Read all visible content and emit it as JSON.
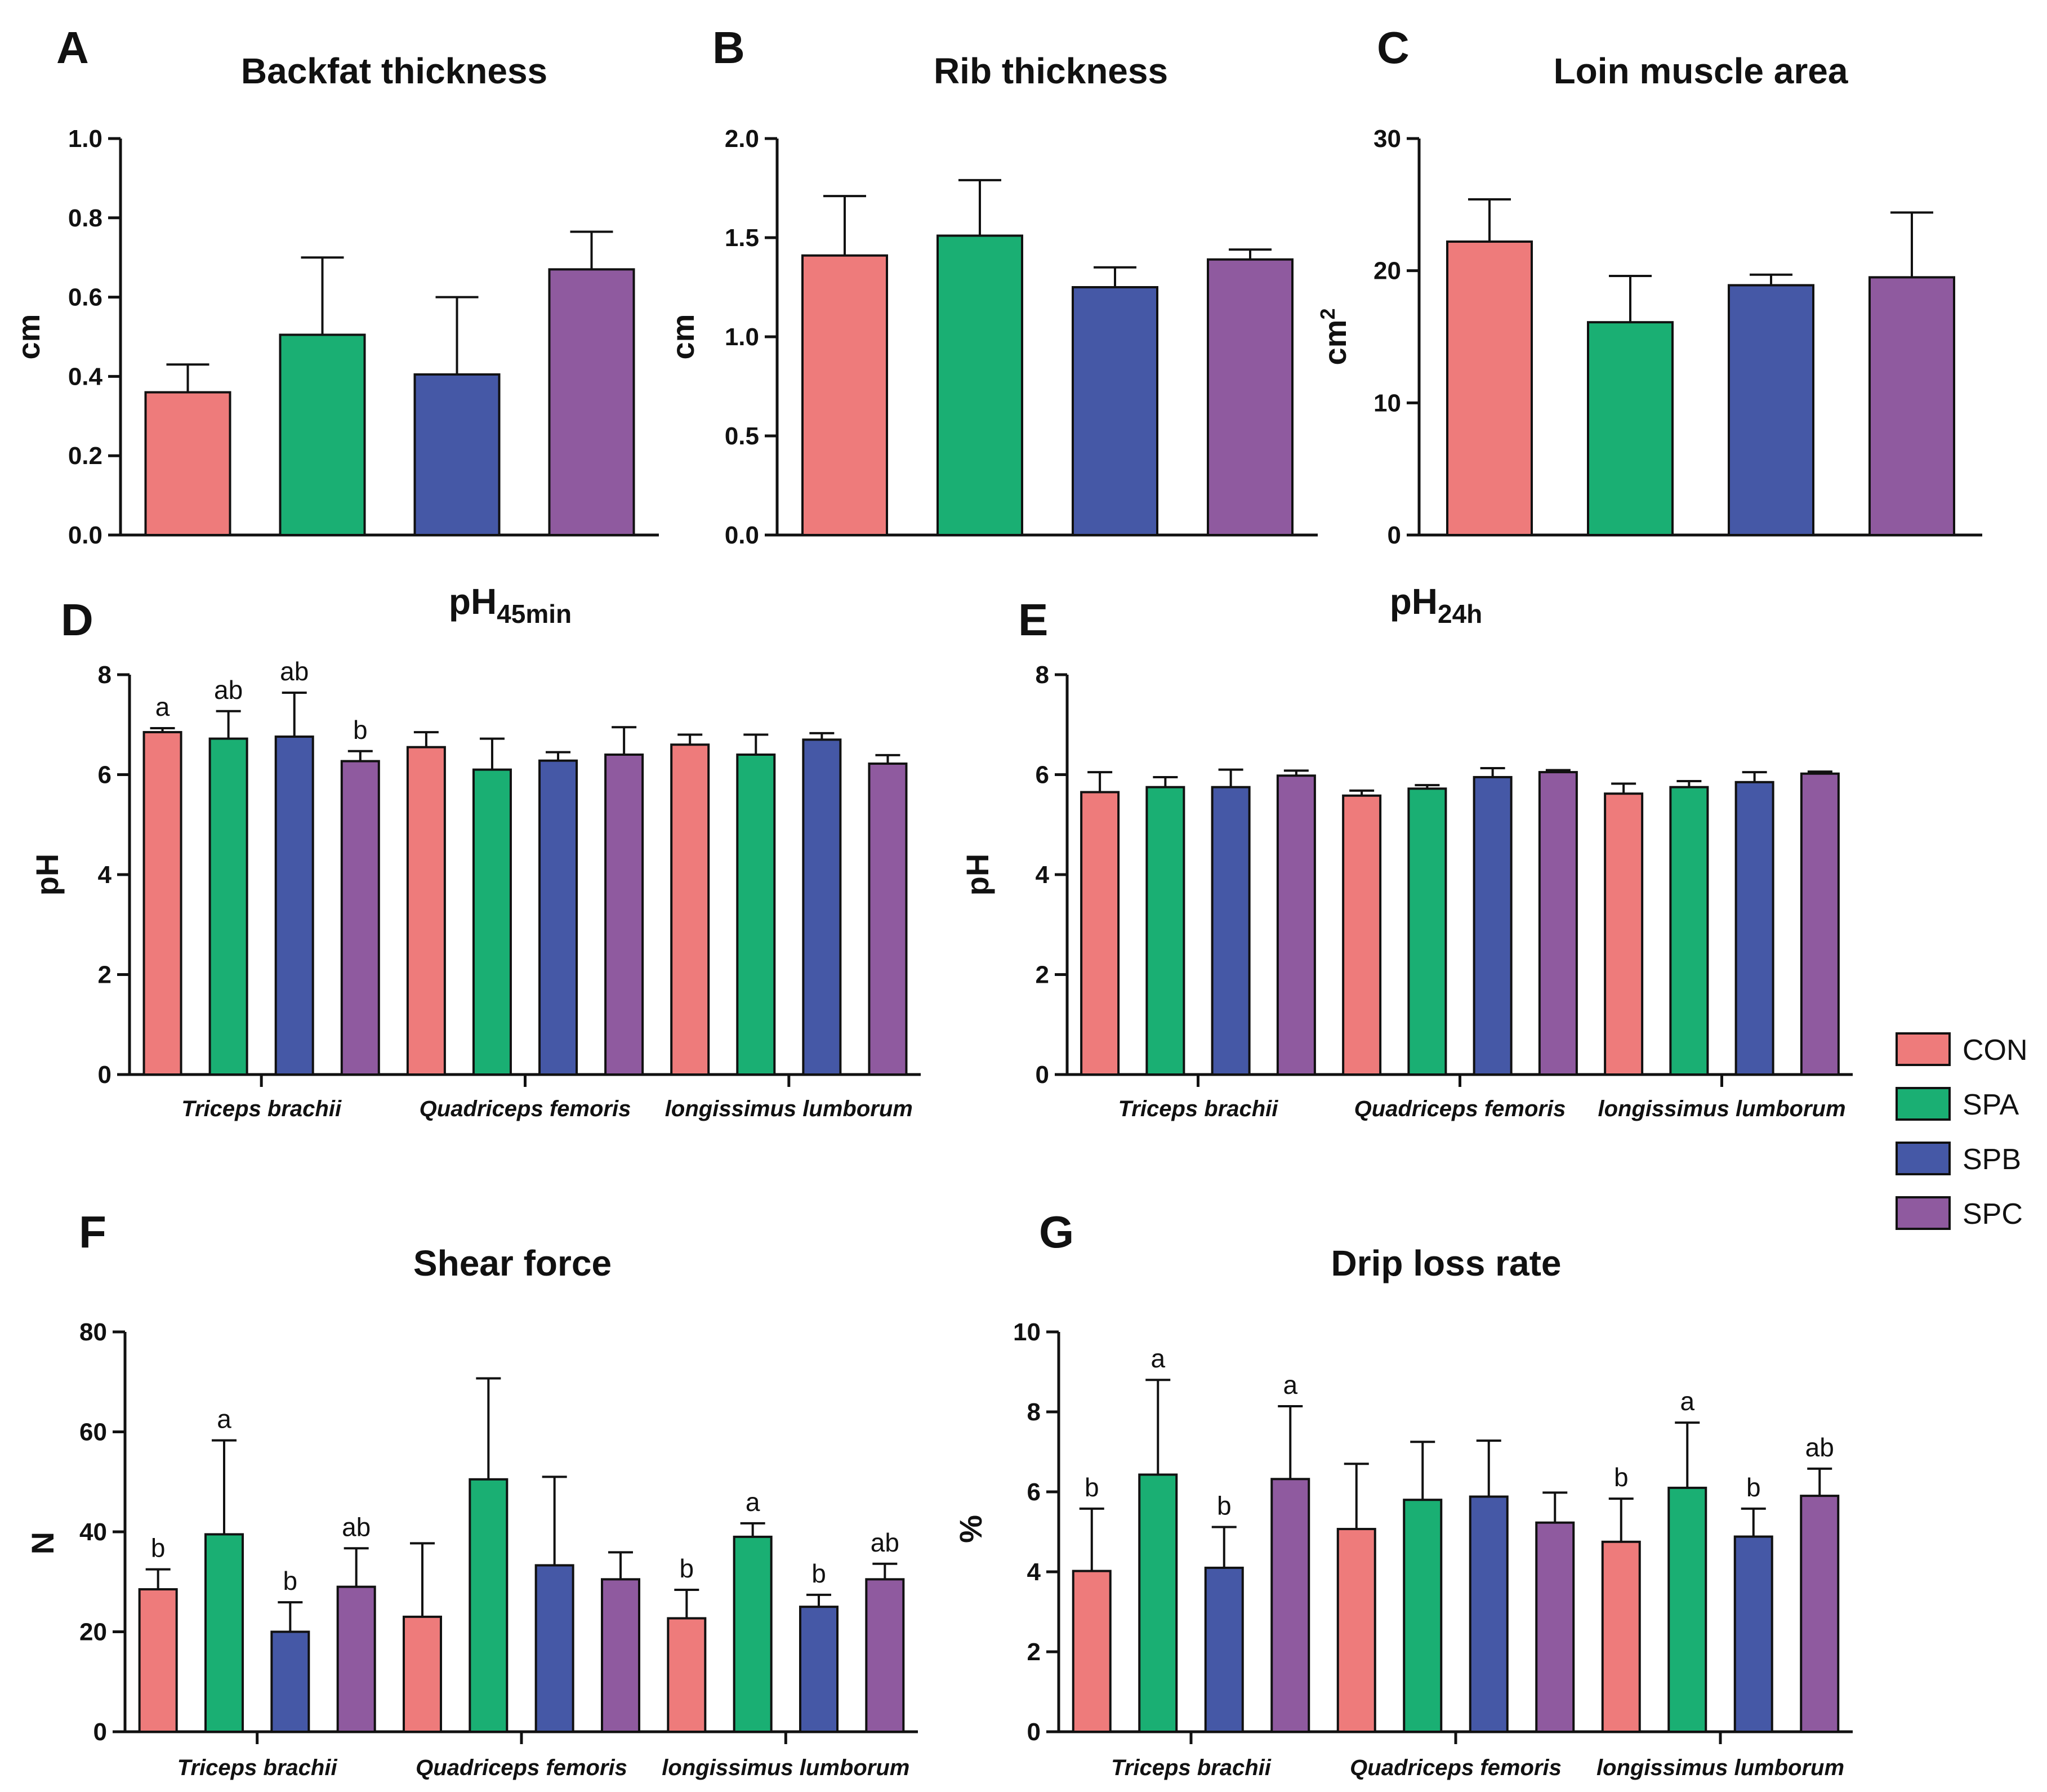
{
  "legend": [
    {
      "name": "CON",
      "color": "#ee7b7b"
    },
    {
      "name": "SPA",
      "color": "#1aaf73"
    },
    {
      "name": "SPB",
      "color": "#4558a6"
    },
    {
      "name": "SPC",
      "color": "#8f5a9f"
    }
  ],
  "chart_data": [
    {
      "panel": "A",
      "type": "bar",
      "title": "Backfat thickness",
      "ylabel": "cm",
      "ylim": [
        0,
        1.0
      ],
      "ticks": [
        "0.0",
        "0.2",
        "0.4",
        "0.6",
        "0.8",
        "1.0"
      ],
      "series": [
        {
          "name": "CON",
          "values": [
            0.36
          ],
          "errors": [
            0.07
          ]
        },
        {
          "name": "SPA",
          "values": [
            0.505
          ],
          "errors": [
            0.195
          ]
        },
        {
          "name": "SPB",
          "values": [
            0.405
          ],
          "errors": [
            0.195
          ]
        },
        {
          "name": "SPC",
          "values": [
            0.67
          ],
          "errors": [
            0.095
          ]
        }
      ]
    },
    {
      "panel": "B",
      "type": "bar",
      "title": "Rib thickness",
      "ylabel": "cm",
      "ylim": [
        0,
        2.0
      ],
      "ticks": [
        "0.0",
        "0.5",
        "1.0",
        "1.5",
        "2.0"
      ],
      "series": [
        {
          "name": "CON",
          "values": [
            1.41
          ],
          "errors": [
            0.3
          ]
        },
        {
          "name": "SPA",
          "values": [
            1.51
          ],
          "errors": [
            0.28
          ]
        },
        {
          "name": "SPB",
          "values": [
            1.25
          ],
          "errors": [
            0.1
          ]
        },
        {
          "name": "SPC",
          "values": [
            1.39
          ],
          "errors": [
            0.05
          ]
        }
      ]
    },
    {
      "panel": "C",
      "type": "bar",
      "title": "Loin muscle area",
      "ylabel": "cm",
      "ylabel_superscript": "2",
      "ylim": [
        0,
        30
      ],
      "ticks": [
        "0",
        "10",
        "20",
        "30"
      ],
      "series": [
        {
          "name": "CON",
          "values": [
            22.2
          ],
          "errors": [
            3.2
          ]
        },
        {
          "name": "SPA",
          "values": [
            16.1
          ],
          "errors": [
            3.5
          ]
        },
        {
          "name": "SPB",
          "values": [
            18.9
          ],
          "errors": [
            0.8
          ]
        },
        {
          "name": "SPC",
          "values": [
            19.5
          ],
          "errors": [
            4.9
          ]
        }
      ]
    },
    {
      "panel": "D",
      "type": "bar",
      "title": "pH",
      "title_subscript": "45min",
      "ylabel": "pH",
      "ylim": [
        0,
        8
      ],
      "ticks": [
        "0",
        "2",
        "4",
        "6",
        "8"
      ],
      "categories": [
        "Triceps brachii",
        "Quadriceps femoris",
        "longissimus lumborum"
      ],
      "series": [
        {
          "name": "CON",
          "values": [
            6.85,
            6.55,
            6.6
          ],
          "errors": [
            0.08,
            0.3,
            0.2
          ],
          "labels": [
            "a",
            "",
            ""
          ]
        },
        {
          "name": "SPA",
          "values": [
            6.72,
            6.1,
            6.4
          ],
          "errors": [
            0.55,
            0.62,
            0.4
          ],
          "labels": [
            "ab",
            "",
            ""
          ]
        },
        {
          "name": "SPB",
          "values": [
            6.76,
            6.28,
            6.7
          ],
          "errors": [
            0.88,
            0.17,
            0.13
          ],
          "labels": [
            "ab",
            "",
            ""
          ]
        },
        {
          "name": "SPC",
          "values": [
            6.27,
            6.4,
            6.22
          ],
          "errors": [
            0.2,
            0.55,
            0.17
          ],
          "labels": [
            "b",
            "",
            ""
          ]
        }
      ]
    },
    {
      "panel": "E",
      "type": "bar",
      "title": "pH",
      "title_subscript": "24h",
      "ylabel": "pH",
      "ylim": [
        0,
        8
      ],
      "ticks": [
        "0",
        "2",
        "4",
        "6",
        "8"
      ],
      "categories": [
        "Triceps brachii",
        "Quadriceps femoris",
        "longissimus lumborum"
      ],
      "series": [
        {
          "name": "CON",
          "values": [
            5.65,
            5.58,
            5.62
          ],
          "errors": [
            0.4,
            0.1,
            0.2
          ]
        },
        {
          "name": "SPA",
          "values": [
            5.75,
            5.72,
            5.75
          ],
          "errors": [
            0.2,
            0.07,
            0.12
          ]
        },
        {
          "name": "SPB",
          "values": [
            5.75,
            5.95,
            5.85
          ],
          "errors": [
            0.35,
            0.18,
            0.2
          ]
        },
        {
          "name": "SPC",
          "values": [
            5.98,
            6.05,
            6.02
          ],
          "errors": [
            0.1,
            0.04,
            0.04
          ]
        }
      ]
    },
    {
      "panel": "F",
      "type": "bar",
      "title": "Shear force",
      "ylabel": "N",
      "ylim": [
        0,
        80
      ],
      "ticks": [
        "0",
        "20",
        "40",
        "60",
        "80"
      ],
      "categories": [
        "Triceps brachii",
        "Quadriceps femoris",
        "longissimus lumborum"
      ],
      "series": [
        {
          "name": "CON",
          "values": [
            28.5,
            23.0,
            22.7
          ],
          "errors": [
            4.0,
            14.7,
            5.7
          ],
          "labels": [
            "b",
            "",
            "b"
          ]
        },
        {
          "name": "SPA",
          "values": [
            39.5,
            50.5,
            39.0
          ],
          "errors": [
            18.8,
            20.2,
            2.7
          ],
          "labels": [
            "a",
            "",
            "a"
          ]
        },
        {
          "name": "SPB",
          "values": [
            20.0,
            33.3,
            25.0
          ],
          "errors": [
            5.9,
            17.7,
            2.4
          ],
          "labels": [
            "b",
            "",
            "b"
          ]
        },
        {
          "name": "SPC",
          "values": [
            29.0,
            30.5,
            30.5
          ],
          "errors": [
            7.7,
            5.4,
            3.1
          ],
          "labels": [
            "ab",
            "",
            "ab"
          ]
        }
      ]
    },
    {
      "panel": "G",
      "type": "bar",
      "title": "Drip loss rate",
      "ylabel": "%",
      "ylim": [
        0,
        10
      ],
      "ticks": [
        "0",
        "2",
        "4",
        "6",
        "8",
        "10"
      ],
      "categories": [
        "Triceps brachii",
        "Quadriceps femoris",
        "longissimus lumborum"
      ],
      "series": [
        {
          "name": "CON",
          "values": [
            4.02,
            5.07,
            4.75
          ],
          "errors": [
            1.56,
            1.63,
            1.08
          ],
          "labels": [
            "b",
            "",
            "b"
          ]
        },
        {
          "name": "SPA",
          "values": [
            6.43,
            5.8,
            6.1
          ],
          "errors": [
            2.37,
            1.45,
            1.63
          ],
          "labels": [
            "a",
            "",
            "a"
          ]
        },
        {
          "name": "SPB",
          "values": [
            4.1,
            5.88,
            4.88
          ],
          "errors": [
            1.02,
            1.4,
            0.7
          ],
          "labels": [
            "b",
            "",
            "b"
          ]
        },
        {
          "name": "SPC",
          "values": [
            6.32,
            5.23,
            5.9
          ],
          "errors": [
            1.82,
            0.75,
            0.68
          ],
          "labels": [
            "a",
            "",
            "ab"
          ]
        }
      ]
    }
  ]
}
